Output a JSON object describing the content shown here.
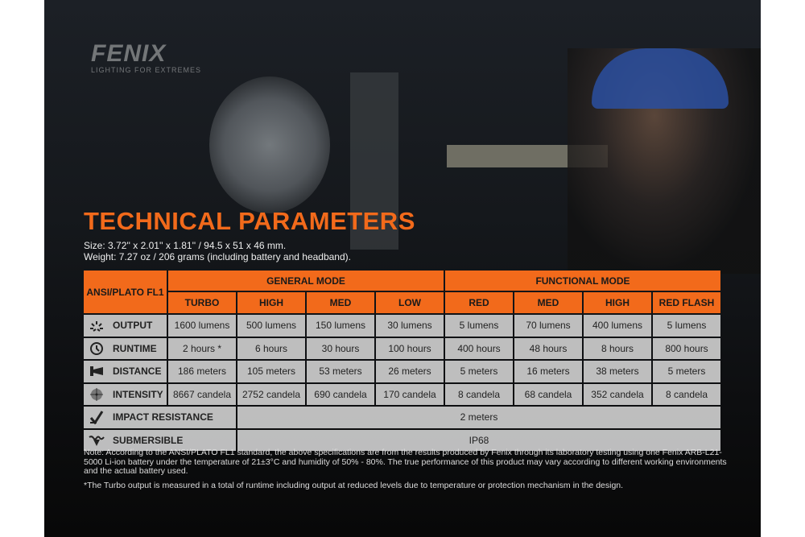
{
  "brand": {
    "name": "FENIX",
    "tagline": "LIGHTING FOR EXTREMES"
  },
  "title": "TECHNICAL PARAMETERS",
  "size": "Size: 3.72'' x 2.01'' x 1.81'' / 94.5 x 51 x 46 mm.",
  "weight": "Weight: 7.27 oz / 206 grams (including battery and headband).",
  "colors": {
    "accent": "#f26a1b"
  },
  "table": {
    "corner": "ANSI/PLATO FL1",
    "groups": [
      "GENERAL MODE",
      "FUNCTIONAL MODE"
    ],
    "modes": [
      "TURBO",
      "HIGH",
      "MED",
      "LOW",
      "RED",
      "MED",
      "HIGH",
      "RED FLASH"
    ],
    "rows": [
      {
        "label": "OUTPUT",
        "icon": "light-rays-icon",
        "values": [
          "1600 lumens",
          "500 lumens",
          "150 lumens",
          "30 lumens",
          "5 lumens",
          "70 lumens",
          "400 lumens",
          "5 lumens"
        ]
      },
      {
        "label": "RUNTIME",
        "icon": "clock-icon",
        "values": [
          "2 hours *",
          "6 hours",
          "30 hours",
          "100 hours",
          "400 hours",
          "48 hours",
          "8 hours",
          "800 hours"
        ]
      },
      {
        "label": "DISTANCE",
        "icon": "beam-distance-icon",
        "values": [
          "186 meters",
          "105 meters",
          "53 meters",
          "26 meters",
          "5 meters",
          "16 meters",
          "38 meters",
          "5 meters"
        ]
      },
      {
        "label": "INTENSITY",
        "icon": "target-icon",
        "values": [
          "8667 candela",
          "2752 candela",
          "690 candela",
          "170 candela",
          "8 candela",
          "68 candela",
          "352 candela",
          "8 candela"
        ]
      }
    ],
    "impact": {
      "label": "IMPACT RESISTANCE",
      "icon": "impact-icon",
      "value": "2 meters"
    },
    "submersible": {
      "label": "SUBMERSIBLE",
      "icon": "submersible-icon",
      "value": "IP68"
    }
  },
  "note": "Note: According to the ANSI/PLATO FL1 standard, the above specifications are from the results produced by Fenix through its laboratory testing using one Fenix ARB-L21-5000 Li-ion battery under the temperature of 21±3°C and humidity of 50% - 80%. The true performance of this product may vary according to different working environments and the actual battery used.",
  "footnote": "*The Turbo output is measured in a total of runtime including output at reduced levels due to temperature or protection mechanism in the design."
}
